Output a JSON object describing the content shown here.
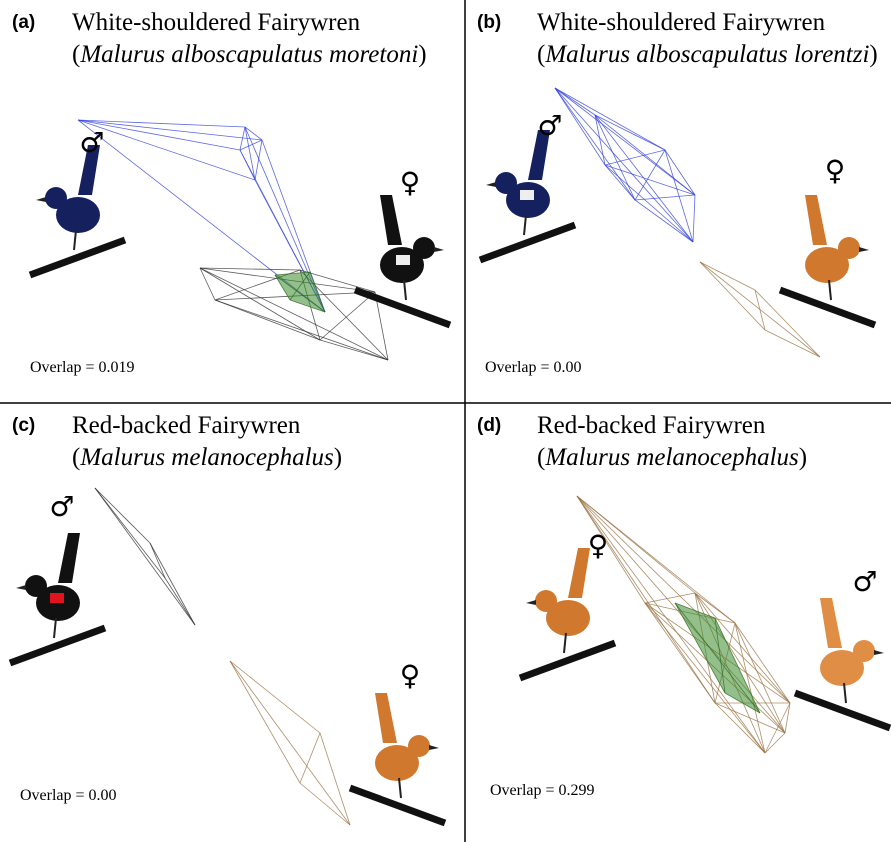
{
  "panels": [
    {
      "label": "(a)",
      "title": "White-shouldered Fairywren",
      "species": {
        "open": "(",
        "name": "Malurus alboscapulatus moretoni",
        "close": ")"
      },
      "male_symbol": "♂",
      "female_symbol": "♀",
      "overlap": "Overlap = 0.019"
    },
    {
      "label": "(b)",
      "title": "White-shouldered Fairywren",
      "species": {
        "open": "(",
        "name": "Malurus alboscapulatus lorentzi",
        "close": ")"
      },
      "male_symbol": "♂",
      "female_symbol": "♀",
      "overlap": "Overlap = 0.00"
    },
    {
      "label": "(c)",
      "title": "Red-backed Fairywren",
      "species": {
        "open": "(",
        "name": "Malurus melanocephalus",
        "close": ")"
      },
      "male_symbol": "♂",
      "female_symbol": "♀",
      "overlap": "Overlap = 0.00"
    },
    {
      "label": "(d)",
      "title": "Red-backed Fairywren",
      "species": {
        "open": "(",
        "name": "Malurus melanocephalus",
        "close": ")"
      },
      "male_symbol": "♂",
      "female_symbol": "♀",
      "overlap": "Overlap = 0.299"
    }
  ]
}
